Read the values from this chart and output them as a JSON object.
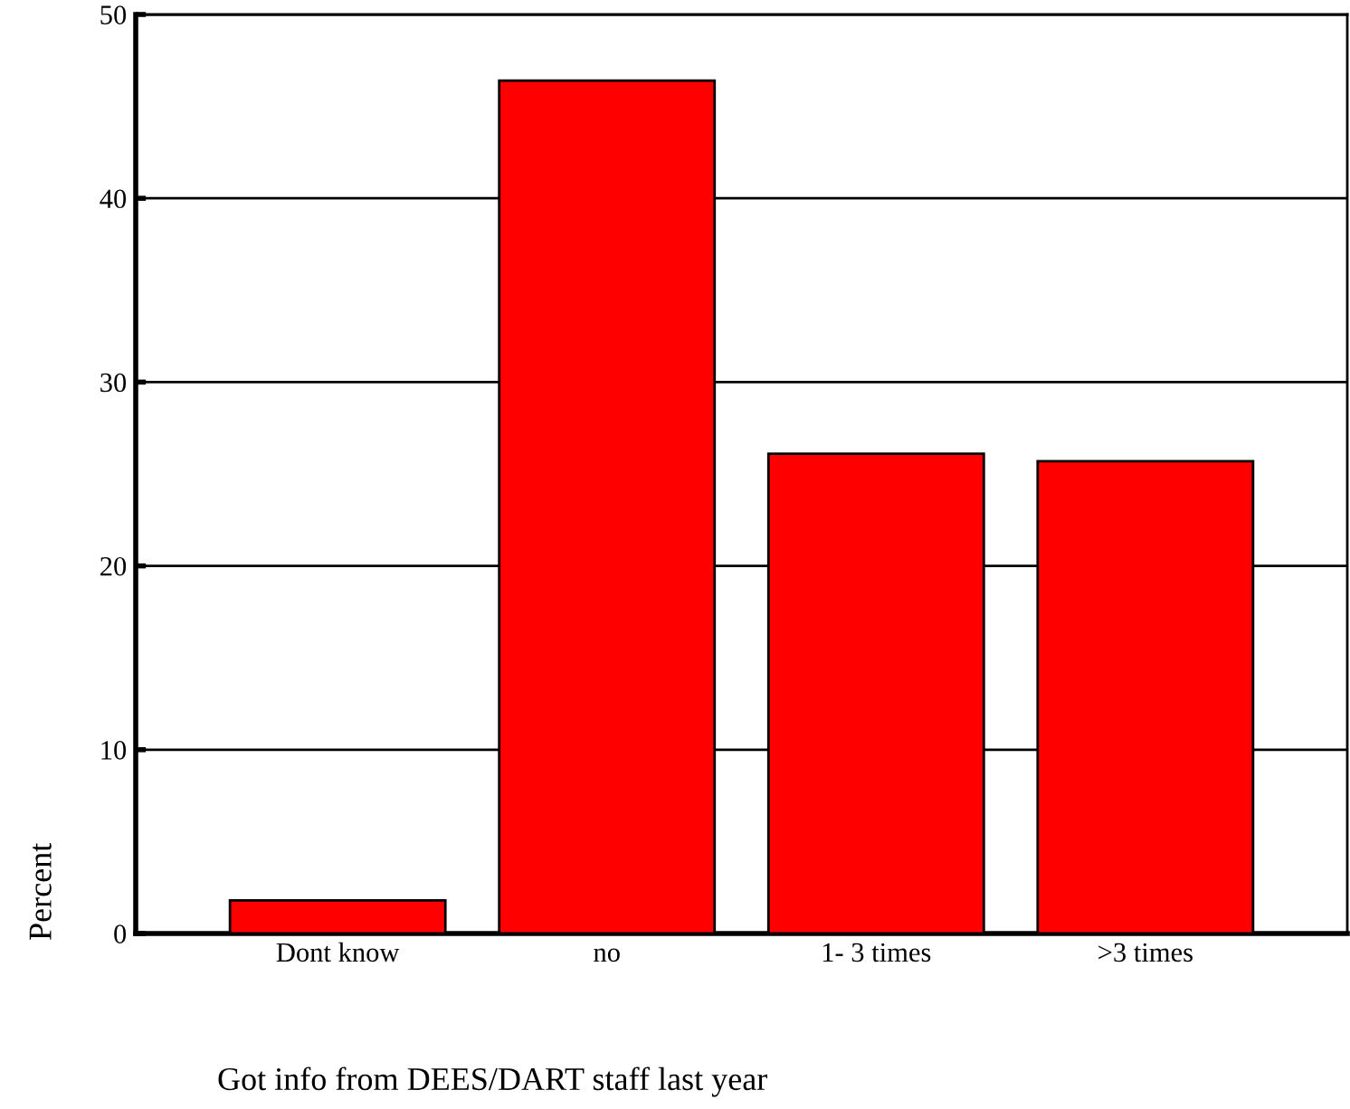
{
  "chart_data": {
    "type": "bar",
    "categories": [
      "Dont know",
      "no",
      "1- 3 times",
      ">3 times"
    ],
    "values": [
      1.8,
      46.4,
      26.1,
      25.7
    ],
    "color": "#ff0000",
    "ylim": [
      0,
      50
    ],
    "yticks": [
      0,
      10,
      20,
      30,
      40,
      50
    ],
    "ylabel": "Percent",
    "xlabel": "Got info from DEES/DART staff last year",
    "grid": "y"
  }
}
